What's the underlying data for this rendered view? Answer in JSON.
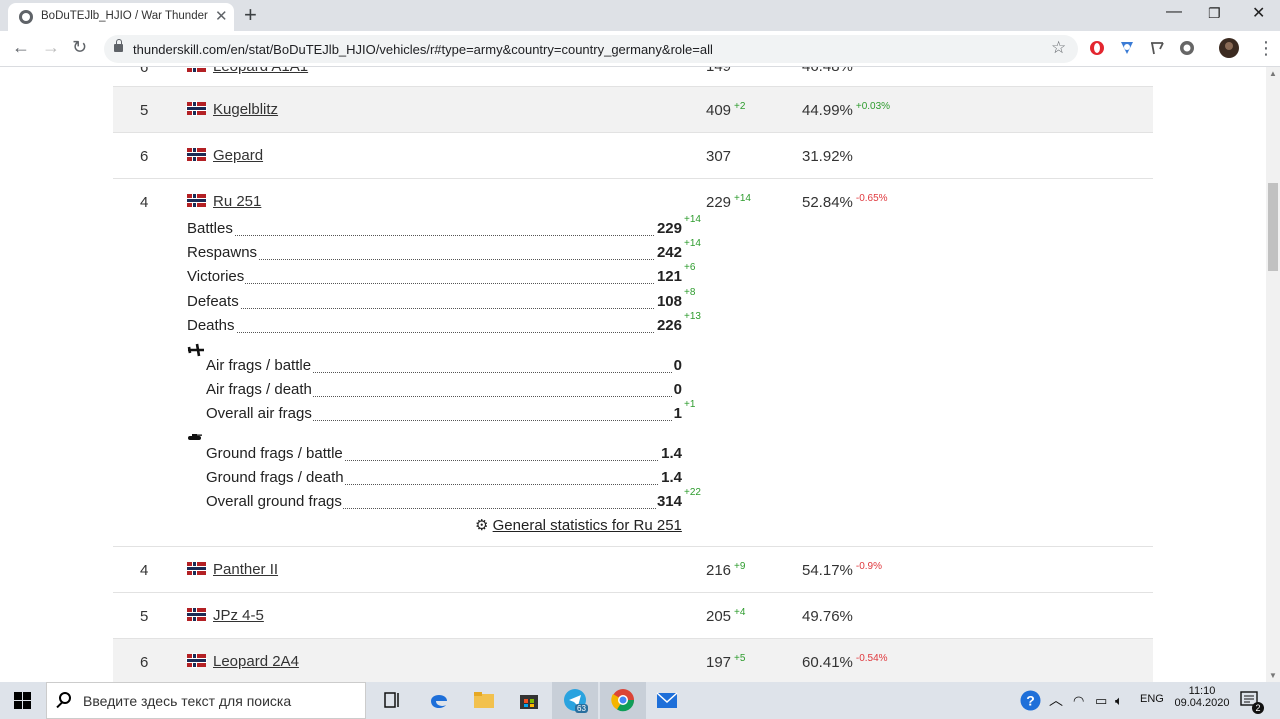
{
  "browser": {
    "tab_title": "BoDuTEJlb_HJIO / War Thunder p",
    "url": "thunderskill.com/en/stat/BoDuTEJlb_HJIO/vehicles/r#type=army&country=country_germany&role=all"
  },
  "rows_before": [
    {
      "rank": "5",
      "name": "Kugelblitz",
      "battles": "409",
      "battles_delta": "+2",
      "win": "44.99%",
      "win_delta": "+0.03%",
      "win_delta_type": "pos",
      "alt": true
    },
    {
      "rank": "6",
      "name": "Gepard",
      "battles": "307",
      "battles_delta": "",
      "win": "31.92%",
      "win_delta": "",
      "win_delta_type": "pos",
      "alt": false
    }
  ],
  "expanded": {
    "rank": "4",
    "name": "Ru 251",
    "battles": "229",
    "battles_delta": "+14",
    "win": "52.84%",
    "win_delta": "-0.65%",
    "stats": [
      {
        "label": "Battles",
        "value": "229",
        "delta": "+14"
      },
      {
        "label": "Respawns",
        "value": "242",
        "delta": "+14"
      },
      {
        "label": "Victories",
        "value": "121",
        "delta": "+6"
      },
      {
        "label": "Defeats",
        "value": "108",
        "delta": "+8"
      },
      {
        "label": "Deaths",
        "value": "226",
        "delta": "+13"
      }
    ],
    "air": [
      {
        "label": "Air frags / battle",
        "value": "0",
        "delta": ""
      },
      {
        "label": "Air frags / death",
        "value": "0",
        "delta": ""
      },
      {
        "label": "Overall air frags",
        "value": "1",
        "delta": "+1"
      }
    ],
    "ground": [
      {
        "label": "Ground frags / battle",
        "value": "1.4",
        "delta": ""
      },
      {
        "label": "Ground frags / death",
        "value": "1.4",
        "delta": ""
      },
      {
        "label": "Overall ground frags",
        "value": "314",
        "delta": "+22"
      }
    ],
    "general_link": "General statistics for Ru 251"
  },
  "rows_after": [
    {
      "rank": "4",
      "name": "Panther II",
      "battles": "216",
      "battles_delta": "+9",
      "win": "54.17%",
      "win_delta": "-0.9%",
      "win_delta_type": "neg",
      "alt": false
    },
    {
      "rank": "5",
      "name": "JPz 4-5",
      "battles": "205",
      "battles_delta": "+4",
      "win": "49.76%",
      "win_delta": "",
      "win_delta_type": "pos",
      "alt": false
    },
    {
      "rank": "6",
      "name": "Leopard 2A4",
      "battles": "197",
      "battles_delta": "+5",
      "win": "60.41%",
      "win_delta": "-0.54%",
      "win_delta_type": "neg",
      "alt": true
    }
  ],
  "taskbar": {
    "search_placeholder": "Введите здесь текст для поиска",
    "telegram_badge": "63",
    "lang": "ENG",
    "time": "11:10",
    "date": "09.04.2020",
    "notifications": "2"
  },
  "colors": {
    "positive": "#2e9c2e",
    "negative": "#e0393e",
    "row_alt": "#f2f2f2"
  }
}
